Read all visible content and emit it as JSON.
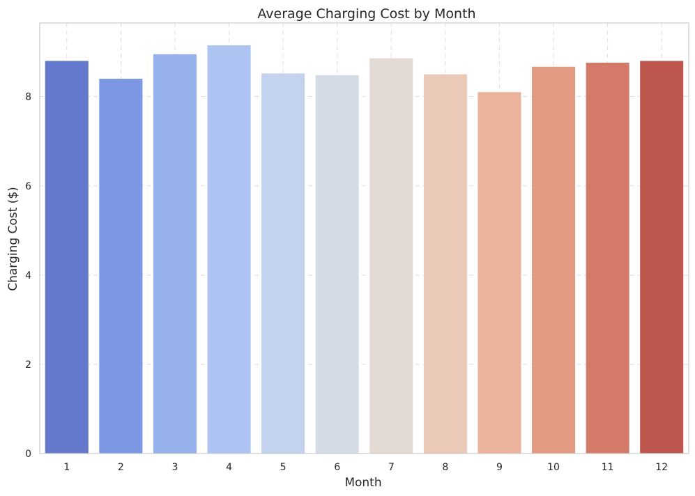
{
  "chart_data": {
    "type": "bar",
    "title": "Average Charging Cost by Month",
    "xlabel": "Month",
    "ylabel": "Charging Cost ($)",
    "categories": [
      "1",
      "2",
      "3",
      "4",
      "5",
      "6",
      "7",
      "8",
      "9",
      "10",
      "11",
      "12"
    ],
    "values": [
      8.8,
      8.4,
      8.95,
      9.15,
      8.52,
      8.48,
      8.86,
      8.5,
      8.1,
      8.67,
      8.76,
      8.8
    ],
    "ylim": [
      0,
      9.65
    ],
    "yticks": [
      0,
      2,
      4,
      6,
      8
    ],
    "grid": true,
    "colors": [
      "#6479cc",
      "#7b96e2",
      "#96b1ec",
      "#adc4f3",
      "#c3d3ef",
      "#d5dbe5",
      "#e3dad4",
      "#ebc9b9",
      "#ebb39b",
      "#e29a80",
      "#d47a68",
      "#bd564d"
    ]
  }
}
